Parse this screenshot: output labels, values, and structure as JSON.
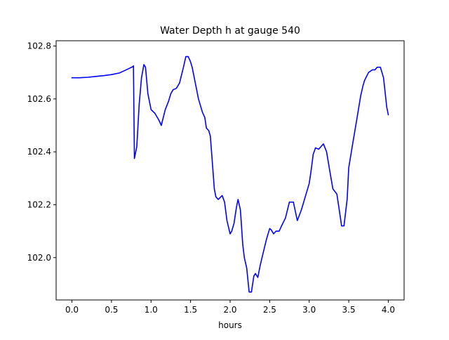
{
  "chart_data": {
    "type": "line",
    "title": "Water Depth h at gauge 540",
    "xlabel": "hours",
    "ylabel": "",
    "xlim": [
      -0.2,
      4.2
    ],
    "ylim": [
      101.84,
      102.82
    ],
    "xticks": [
      0.0,
      0.5,
      1.0,
      1.5,
      2.0,
      2.5,
      3.0,
      3.5,
      4.0
    ],
    "xtick_labels": [
      "0.0",
      "0.5",
      "1.0",
      "1.5",
      "2.0",
      "2.5",
      "3.0",
      "3.5",
      "4.0"
    ],
    "yticks": [
      102.0,
      102.2,
      102.4,
      102.6,
      102.8
    ],
    "ytick_labels": [
      "102.0",
      "102.2",
      "102.4",
      "102.6",
      "102.8"
    ],
    "grid": false,
    "series": [
      {
        "color": "#0000ff",
        "x": [
          0.0,
          0.1,
          0.2,
          0.3,
          0.4,
          0.5,
          0.6,
          0.65,
          0.7,
          0.77,
          0.778,
          0.79,
          0.82,
          0.85,
          0.88,
          0.91,
          0.93,
          0.96,
          1.0,
          1.05,
          1.1,
          1.13,
          1.18,
          1.22,
          1.25,
          1.28,
          1.32,
          1.36,
          1.41,
          1.44,
          1.47,
          1.5,
          1.52,
          1.56,
          1.6,
          1.65,
          1.68,
          1.7,
          1.73,
          1.75,
          1.77,
          1.8,
          1.82,
          1.85,
          1.9,
          1.93,
          1.96,
          2.0,
          2.02,
          2.05,
          2.08,
          2.1,
          2.13,
          2.16,
          2.18,
          2.21,
          2.24,
          2.27,
          2.3,
          2.32,
          2.35,
          2.38,
          2.42,
          2.46,
          2.5,
          2.52,
          2.55,
          2.58,
          2.6,
          2.62,
          2.65,
          2.7,
          2.75,
          2.8,
          2.85,
          2.9,
          2.95,
          3.0,
          3.02,
          3.05,
          3.08,
          3.12,
          3.15,
          3.18,
          3.22,
          3.27,
          3.3,
          3.35,
          3.38,
          3.41,
          3.44,
          3.48,
          3.5,
          3.55,
          3.6,
          3.65,
          3.68,
          3.7,
          3.75,
          3.8,
          3.83,
          3.86,
          3.9,
          3.94,
          3.98,
          4.0
        ],
        "y": [
          102.68,
          102.68,
          102.682,
          102.685,
          102.688,
          102.692,
          102.698,
          102.705,
          102.712,
          102.722,
          102.725,
          102.375,
          102.42,
          102.58,
          102.68,
          102.73,
          102.72,
          102.62,
          102.56,
          102.545,
          102.52,
          102.5,
          102.56,
          102.59,
          102.62,
          102.635,
          102.64,
          102.66,
          102.72,
          102.76,
          102.76,
          102.74,
          102.72,
          102.66,
          102.6,
          102.55,
          102.53,
          102.49,
          102.48,
          102.46,
          102.38,
          102.26,
          102.23,
          102.22,
          102.235,
          102.21,
          102.14,
          102.09,
          102.1,
          102.13,
          102.19,
          102.22,
          102.18,
          102.05,
          102.0,
          101.96,
          101.87,
          101.87,
          101.93,
          101.94,
          101.925,
          101.97,
          102.02,
          102.07,
          102.11,
          102.105,
          102.09,
          102.1,
          102.1,
          102.1,
          102.12,
          102.15,
          102.21,
          102.21,
          102.14,
          102.18,
          102.23,
          102.28,
          102.32,
          102.39,
          102.415,
          102.41,
          102.42,
          102.43,
          102.4,
          102.31,
          102.26,
          102.24,
          102.18,
          102.12,
          102.12,
          102.22,
          102.34,
          102.43,
          102.52,
          102.61,
          102.65,
          102.67,
          102.7,
          102.71,
          102.71,
          102.72,
          102.72,
          102.68,
          102.57,
          102.54
        ]
      }
    ]
  }
}
